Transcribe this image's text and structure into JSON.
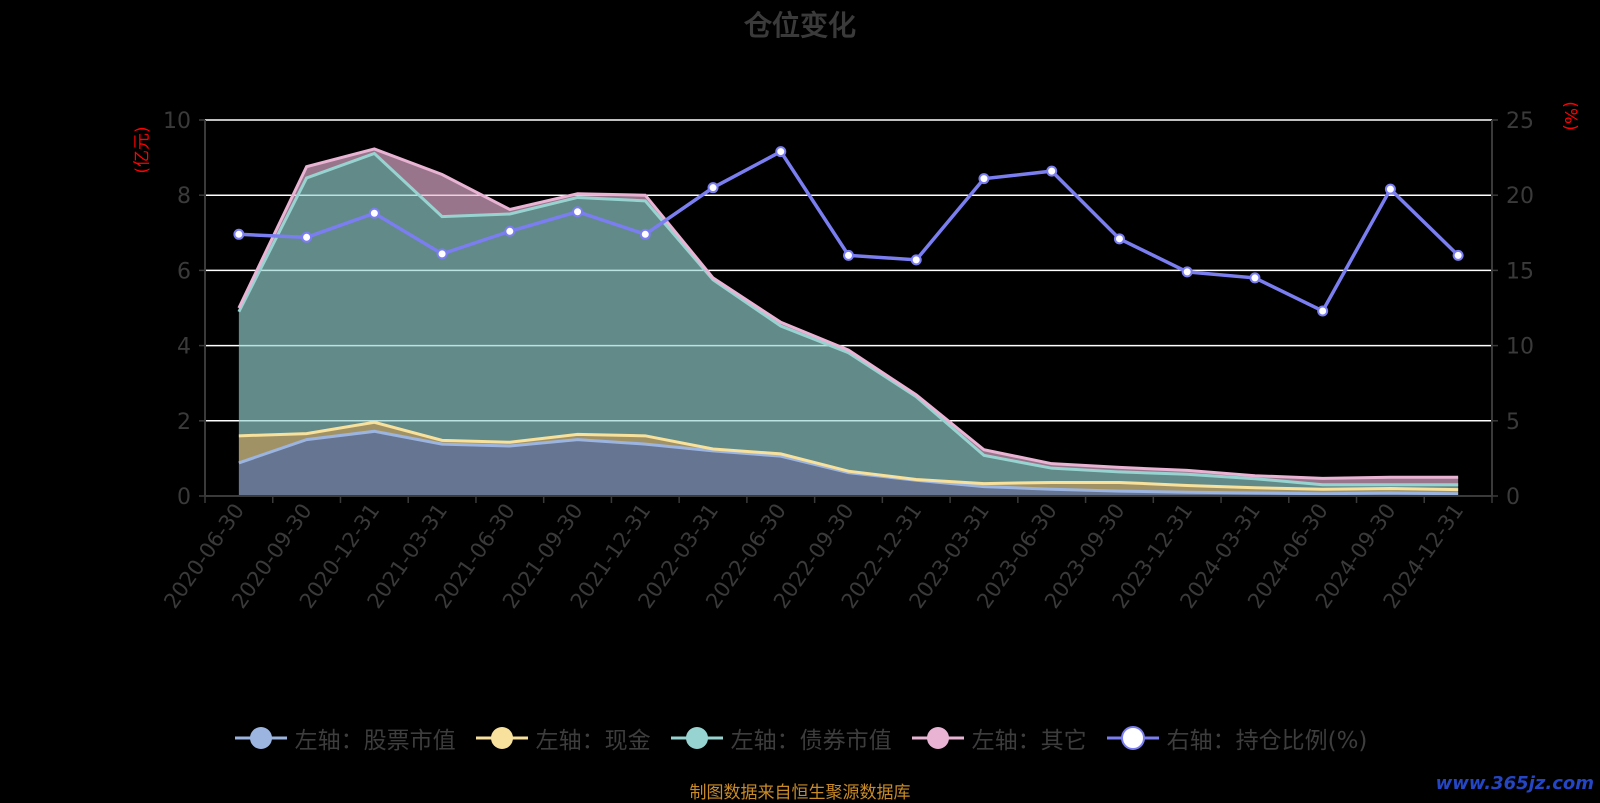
{
  "header": {
    "title": "仓位变化"
  },
  "units": {
    "left": "(亿元)",
    "right": "(%)"
  },
  "footer": {
    "source": "制图数据来自恒生聚源数据库"
  },
  "watermark": {
    "text": "www.365jz.com"
  },
  "colors": {
    "stock": "#9bb4e0",
    "cash": "#f7e19c",
    "bond": "#97d4d1",
    "other": "#e9b3d4",
    "ratio": "#7b7ef0",
    "grid": "#ffffff",
    "axis": "#3a3a3a"
  },
  "chart_data": {
    "type": "area",
    "title": "仓位变化",
    "stacked": true,
    "categories": [
      "2020-06-30",
      "2020-09-30",
      "2020-12-31",
      "2021-03-31",
      "2021-06-30",
      "2021-09-30",
      "2021-12-31",
      "2022-03-31",
      "2022-06-30",
      "2022-09-30",
      "2022-12-31",
      "2023-03-31",
      "2023-06-30",
      "2023-09-30",
      "2023-12-31",
      "2024-03-31",
      "2024-06-30",
      "2024-09-30",
      "2024-12-31"
    ],
    "y_left": {
      "label": "(亿元)",
      "ylim": [
        0,
        10
      ],
      "ticks": [
        0,
        2,
        4,
        6,
        8,
        10
      ]
    },
    "y_right": {
      "label": "(%)",
      "ylim": [
        0,
        25
      ],
      "ticks": [
        0,
        5,
        10,
        15,
        20,
        25
      ]
    },
    "grid": true,
    "legend_position": "bottom",
    "series": [
      {
        "name": "左轴：股票市值",
        "axis": "left",
        "color": "#9bb4e0",
        "values": [
          0.88,
          1.5,
          1.72,
          1.38,
          1.33,
          1.5,
          1.38,
          1.2,
          1.06,
          0.62,
          0.42,
          0.25,
          0.18,
          0.13,
          0.1,
          0.08,
          0.06,
          0.08,
          0.06
        ]
      },
      {
        "name": "左轴：现金",
        "axis": "left",
        "color": "#f7e19c",
        "values": [
          0.72,
          0.16,
          0.24,
          0.1,
          0.1,
          0.14,
          0.22,
          0.05,
          0.06,
          0.04,
          0.02,
          0.08,
          0.18,
          0.23,
          0.18,
          0.14,
          0.12,
          0.12,
          0.11
        ]
      },
      {
        "name": "左轴：债券市值",
        "axis": "left",
        "color": "#97d4d1",
        "values": [
          3.3,
          6.8,
          7.15,
          5.95,
          6.07,
          6.3,
          6.25,
          4.5,
          3.4,
          3.15,
          2.2,
          0.75,
          0.38,
          0.28,
          0.3,
          0.24,
          0.12,
          0.1,
          0.13
        ]
      },
      {
        "name": "左轴：其它",
        "axis": "left",
        "color": "#e9b3d4",
        "values": [
          0.1,
          0.3,
          0.12,
          1.12,
          0.12,
          0.1,
          0.15,
          0.05,
          0.1,
          0.07,
          0.05,
          0.15,
          0.12,
          0.12,
          0.1,
          0.08,
          0.17,
          0.2,
          0.2
        ]
      },
      {
        "name": "右轴：持仓比例(%)",
        "axis": "right",
        "type": "line",
        "color": "#7b7ef0",
        "values": [
          17.4,
          17.2,
          18.8,
          16.1,
          17.6,
          18.9,
          17.4,
          20.5,
          22.9,
          16.0,
          15.7,
          21.1,
          21.6,
          17.1,
          14.9,
          14.5,
          12.3,
          20.4,
          16.0
        ]
      }
    ]
  }
}
